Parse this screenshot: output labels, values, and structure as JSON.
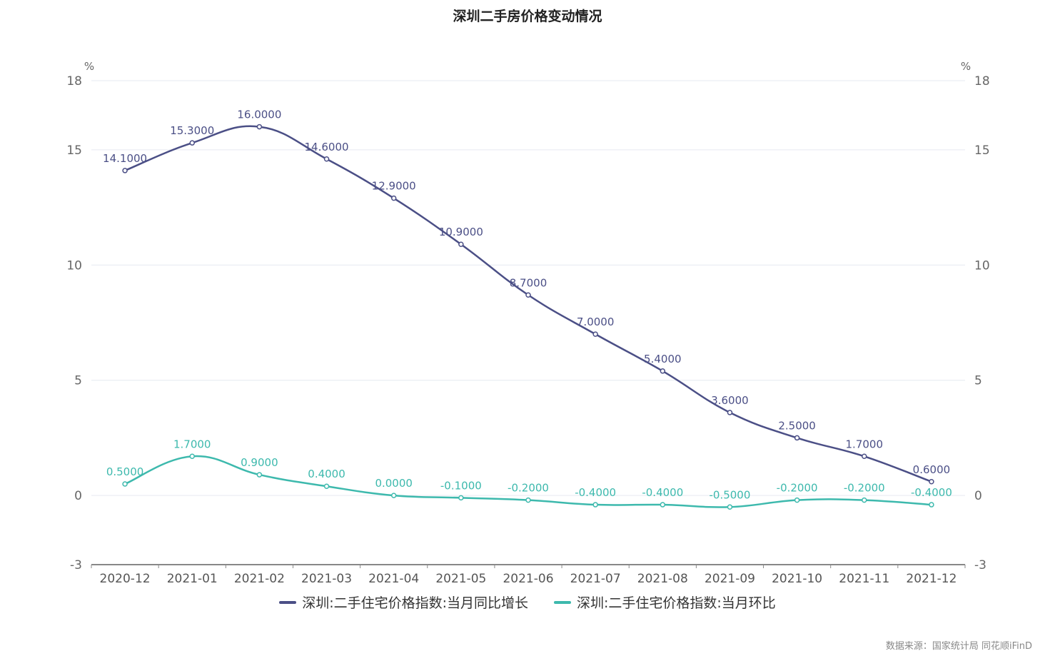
{
  "title": "深圳二手房价格变动情况",
  "source_note": "数据来源：国家统计局 同花顺iFinD",
  "colors": {
    "series1": "#4b4f86",
    "series2": "#3db9ad",
    "axis": "#888888",
    "grid": "#e6e9f0",
    "label": "#555555"
  },
  "chart_data": {
    "type": "line",
    "title": "深圳二手房价格变动情况",
    "x": [
      "2020-12",
      "2021-01",
      "2021-02",
      "2021-03",
      "2021-04",
      "2021-05",
      "2021-06",
      "2021-07",
      "2021-08",
      "2021-09",
      "2021-10",
      "2021-11",
      "2021-12"
    ],
    "y_unit_left": "%",
    "y_unit_right": "%",
    "ylim": [
      -3,
      18
    ],
    "yticks": [
      -3,
      0,
      5,
      10,
      15,
      18
    ],
    "grid": true,
    "legend_position": "bottom",
    "series": [
      {
        "name": "深圳:二手住宅价格指数:当月同比增长",
        "values": [
          14.1,
          15.3,
          16.0,
          14.6,
          12.9,
          10.9,
          8.7,
          7.0,
          5.4,
          3.6,
          2.5,
          1.7,
          0.6
        ],
        "labels": [
          "14.1000",
          "15.3000",
          "16.0000",
          "14.6000",
          "12.9000",
          "10.9000",
          "8.7000",
          "7.0000",
          "5.4000",
          "3.6000",
          "2.5000",
          "1.7000",
          "0.6000"
        ]
      },
      {
        "name": "深圳:二手住宅价格指数:当月环比",
        "values": [
          0.5,
          1.7,
          0.9,
          0.4,
          0.0,
          -0.1,
          -0.2,
          -0.4,
          -0.4,
          -0.5,
          -0.2,
          -0.2,
          -0.4
        ],
        "labels": [
          "0.5000",
          "1.7000",
          "0.9000",
          "0.4000",
          "0.0000",
          "-0.1000",
          "-0.2000",
          "-0.4000",
          "-0.4000",
          "-0.5000",
          "-0.2000",
          "-0.2000",
          "-0.4000"
        ]
      }
    ]
  }
}
